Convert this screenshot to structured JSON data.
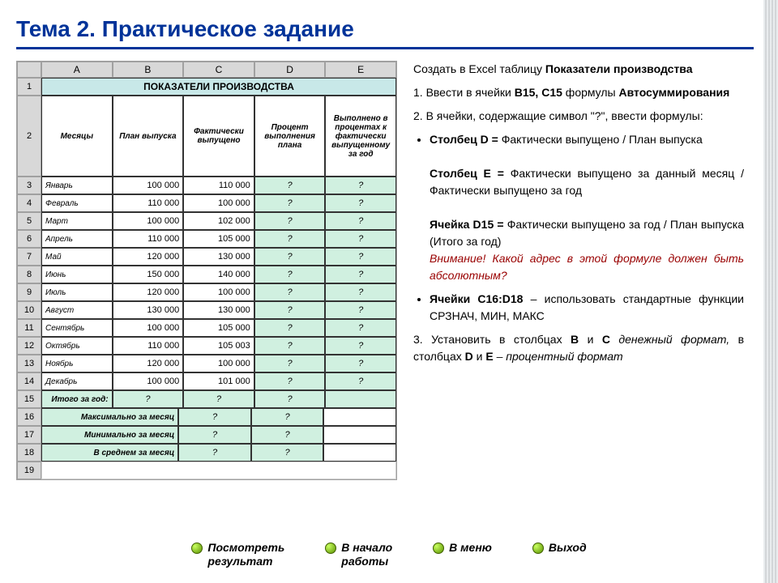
{
  "title": "Тема 2. Практическое задание",
  "excel": {
    "col_letters": [
      "A",
      "B",
      "C",
      "D",
      "E"
    ],
    "table_title": "ПОКАЗАТЕЛИ ПРОИЗВОДСТВА",
    "headers": [
      "Месяцы",
      "План выпуска",
      "Фактически выпущено",
      "Процент выполнения плана",
      "Выполнено в процентах к фактически выпущенному за год"
    ],
    "rows": [
      {
        "n": 3,
        "m": "Январь",
        "b": "100 000",
        "c": "110 000",
        "d": "?",
        "e": "?"
      },
      {
        "n": 4,
        "m": "Февраль",
        "b": "110 000",
        "c": "100 000",
        "d": "?",
        "e": "?"
      },
      {
        "n": 5,
        "m": "Март",
        "b": "100 000",
        "c": "102 000",
        "d": "?",
        "e": "?"
      },
      {
        "n": 6,
        "m": "Апрель",
        "b": "110 000",
        "c": "105 000",
        "d": "?",
        "e": "?"
      },
      {
        "n": 7,
        "m": "Май",
        "b": "120 000",
        "c": "130 000",
        "d": "?",
        "e": "?"
      },
      {
        "n": 8,
        "m": "Июнь",
        "b": "150 000",
        "c": "140 000",
        "d": "?",
        "e": "?"
      },
      {
        "n": 9,
        "m": "Июль",
        "b": "120 000",
        "c": "100 000",
        "d": "?",
        "e": "?"
      },
      {
        "n": 10,
        "m": "Август",
        "b": "130 000",
        "c": "130 000",
        "d": "?",
        "e": "?"
      },
      {
        "n": 11,
        "m": "Сентябрь",
        "b": "100 000",
        "c": "105 000",
        "d": "?",
        "e": "?"
      },
      {
        "n": 12,
        "m": "Октябрь",
        "b": "110 000",
        "c": "105 003",
        "d": "?",
        "e": "?"
      },
      {
        "n": 13,
        "m": "Ноябрь",
        "b": "120 000",
        "c": "100 000",
        "d": "?",
        "e": "?"
      },
      {
        "n": 14,
        "m": "Декабрь",
        "b": "100 000",
        "c": "101 000",
        "d": "?",
        "e": "?"
      }
    ],
    "totals": [
      {
        "n": 15,
        "label": "Итого за год:",
        "b": "?",
        "c": "?",
        "d": "?",
        "e": ""
      },
      {
        "n": 16,
        "label": "Максимально за месяц",
        "b": "",
        "c": "?",
        "d": "?",
        "e": ""
      },
      {
        "n": 17,
        "label": "Минимально за месяц",
        "b": "",
        "c": "?",
        "d": "?",
        "e": ""
      },
      {
        "n": 18,
        "label": "В среднем за месяц",
        "b": "",
        "c": "?",
        "d": "?",
        "e": ""
      }
    ]
  },
  "text": {
    "p0_a": "Создать в Excel таблицу ",
    "p0_b": "Показатели производства",
    "p1_a": "1. Ввести в ячейки ",
    "p1_b": "В15, С15",
    "p1_c": " формулы ",
    "p1_d": "Автосуммирования",
    "p2": "2. В ячейки, содержащие символ \"?\", ввести формулы:",
    "li1_a": "Столбец D =",
    "li1_b": " Фактически выпущено / План выпуска",
    "li2_a": "Столбец Е =",
    "li2_b": " Фактически выпущено за данный месяц / Фактически выпущено за год",
    "li3_a": "Ячейка D15 =",
    "li3_b": " Фактически выпущено за год / План выпуска (Итого за год)",
    "warn": "Внимание! Какой адрес в этой формуле должен быть абсолютным?",
    "li4_a": "Ячейки C16:D18",
    "li4_b": " – использовать стандартные функции СРЗНАЧ, МИН, МАКС",
    "p3_a": "3. Установить в столбцах ",
    "p3_b": "В",
    "p3_c": " и ",
    "p3_d": "С",
    "p3_e": " денежный формат,",
    "p3_f": " в столбцах ",
    "p3_g": "D",
    "p3_h": " и ",
    "p3_i": "E",
    "p3_j": " – процентный формат"
  },
  "nav": {
    "view": "Посмотреть\nрезультат",
    "start": "В начало\nработы",
    "menu": "В меню",
    "exit": "Выход"
  }
}
